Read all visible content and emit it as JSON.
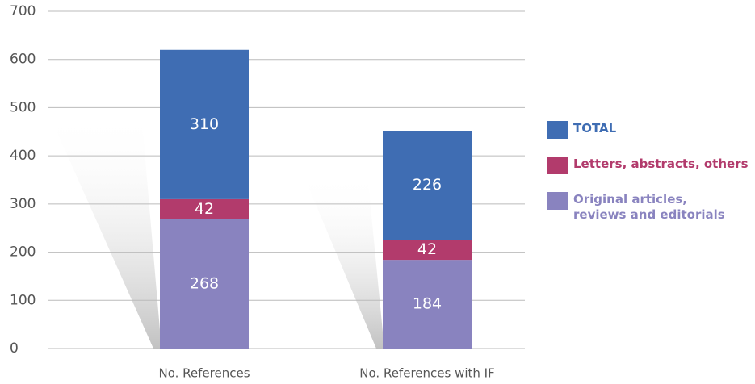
{
  "chart_data": {
    "type": "bar",
    "stacked": true,
    "categories": [
      "No. References",
      "No. References with IF"
    ],
    "series": [
      {
        "name": "TOTAL",
        "color": "#3f6db3",
        "values": [
          310,
          226
        ]
      },
      {
        "name": "Letters, abstracts, others",
        "color": "#b23b6c",
        "values": [
          42,
          42
        ]
      },
      {
        "name": "Original articles, reviews and editorials",
        "color": "#8983bf",
        "values": [
          268,
          184
        ]
      }
    ],
    "ylim": [
      0,
      700
    ],
    "yticks": [
      0,
      100,
      200,
      300,
      400,
      500,
      600,
      700
    ],
    "grid": true,
    "legend": "right"
  }
}
